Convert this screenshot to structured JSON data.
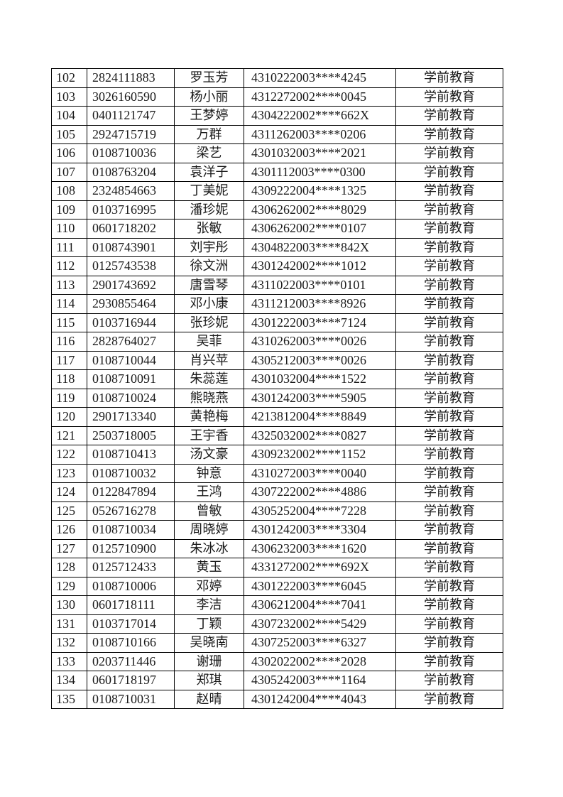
{
  "table": {
    "rows": [
      [
        "102",
        "2824111883",
        "罗玉芳",
        "4310222003****4245",
        "学前教育"
      ],
      [
        "103",
        "3026160590",
        "杨小丽",
        "4312272002****0045",
        "学前教育"
      ],
      [
        "104",
        "0401121747",
        "王梦婷",
        "4304222002****662X",
        "学前教育"
      ],
      [
        "105",
        "2924715719",
        "万群",
        "4311262003****0206",
        "学前教育"
      ],
      [
        "106",
        "0108710036",
        "梁艺",
        "4301032003****2021",
        "学前教育"
      ],
      [
        "107",
        "0108763204",
        "袁洋子",
        "4301112003****0300",
        "学前教育"
      ],
      [
        "108",
        "2324854663",
        "丁美妮",
        "4309222004****1325",
        "学前教育"
      ],
      [
        "109",
        "0103716995",
        "潘珍妮",
        "4306262002****8029",
        "学前教育"
      ],
      [
        "110",
        "0601718202",
        "张敏",
        "4306262002****0107",
        "学前教育"
      ],
      [
        "111",
        "0108743901",
        "刘宇彤",
        "4304822003****842X",
        "学前教育"
      ],
      [
        "112",
        "0125743538",
        "徐文洲",
        "4301242002****1012",
        "学前教育"
      ],
      [
        "113",
        "2901743692",
        "唐雪琴",
        "4311022003****0101",
        "学前教育"
      ],
      [
        "114",
        "2930855464",
        "邓小康",
        "4311212003****8926",
        "学前教育"
      ],
      [
        "115",
        "0103716944",
        "张珍妮",
        "4301222003****7124",
        "学前教育"
      ],
      [
        "116",
        "2828764027",
        "吴菲",
        "4310262003****0026",
        "学前教育"
      ],
      [
        "117",
        "0108710044",
        "肖兴苹",
        "4305212003****0026",
        "学前教育"
      ],
      [
        "118",
        "0108710091",
        "朱蕊莲",
        "4301032004****1522",
        "学前教育"
      ],
      [
        "119",
        "0108710024",
        "熊晓燕",
        "4301242003****5905",
        "学前教育"
      ],
      [
        "120",
        "2901713340",
        "黄艳梅",
        "4213812004****8849",
        "学前教育"
      ],
      [
        "121",
        "2503718005",
        "王宇香",
        "4325032002****0827",
        "学前教育"
      ],
      [
        "122",
        "0108710413",
        "汤文豪",
        "4309232002****1152",
        "学前教育"
      ],
      [
        "123",
        "0108710032",
        "钟意",
        "4310272003****0040",
        "学前教育"
      ],
      [
        "124",
        "0122847894",
        "王鸿",
        "4307222002****4886",
        "学前教育"
      ],
      [
        "125",
        "0526716278",
        "曾敏",
        "4305252004****7228",
        "学前教育"
      ],
      [
        "126",
        "0108710034",
        "周晓婷",
        "4301242003****3304",
        "学前教育"
      ],
      [
        "127",
        "0125710900",
        "朱冰冰",
        "4306232003****1620",
        "学前教育"
      ],
      [
        "128",
        "0125712433",
        "黄玉",
        "4331272002****692X",
        "学前教育"
      ],
      [
        "129",
        "0108710006",
        "邓婷",
        "4301222003****6045",
        "学前教育"
      ],
      [
        "130",
        "0601718111",
        "李洁",
        "4306212004****7041",
        "学前教育"
      ],
      [
        "131",
        "0103717014",
        "丁颖",
        "4307232002****5429",
        "学前教育"
      ],
      [
        "132",
        "0108710166",
        "吴晓南",
        "4307252003****6327",
        "学前教育"
      ],
      [
        "133",
        "0203711446",
        "谢珊",
        "4302022002****2028",
        "学前教育"
      ],
      [
        "134",
        "0601718197",
        "郑琪",
        "4305242003****1164",
        "学前教育"
      ],
      [
        "135",
        "0108710031",
        "赵晴",
        "4301242004****4043",
        "学前教育"
      ]
    ]
  }
}
